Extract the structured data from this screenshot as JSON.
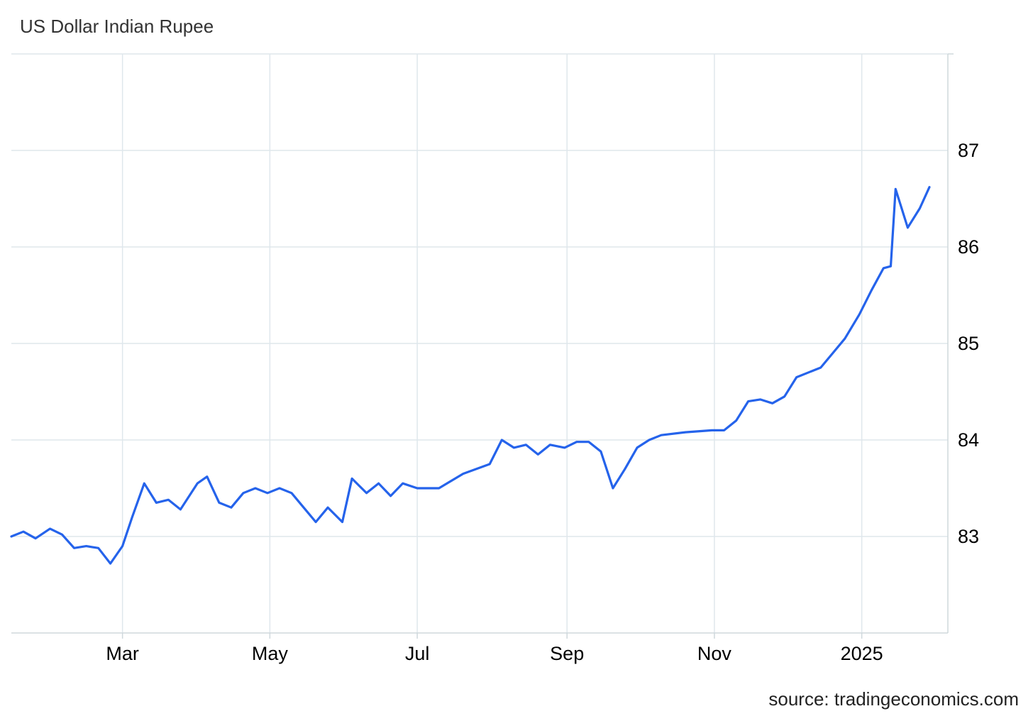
{
  "title": "US Dollar Indian Rupee",
  "source": "source: tradingeconomics.com",
  "colors": {
    "line": "#2563eb",
    "grid": "#dfe7ec",
    "axis": "#cfd8dc"
  },
  "chart_data": {
    "type": "line",
    "title": "US Dollar Indian Rupee",
    "x_tick_labels": [
      "Mar",
      "May",
      "Jul",
      "Sep",
      "Nov",
      "2025"
    ],
    "y_tick_labels": [
      "83",
      "84",
      "85",
      "86",
      "87"
    ],
    "ylim": [
      82,
      88
    ],
    "grid": true,
    "x_range": [
      "2024-01-15",
      "2025-01-29"
    ],
    "series": [
      {
        "x": [
          "2024-01-15",
          "2024-01-20",
          "2024-01-25",
          "2024-01-31",
          "2024-02-05",
          "2024-02-10",
          "2024-02-15",
          "2024-02-20",
          "2024-02-25",
          "2024-03-01",
          "2024-03-05",
          "2024-03-10",
          "2024-03-15",
          "2024-03-20",
          "2024-03-25",
          "2024-04-01",
          "2024-04-05",
          "2024-04-10",
          "2024-04-15",
          "2024-04-20",
          "2024-04-25",
          "2024-04-30",
          "2024-05-05",
          "2024-05-10",
          "2024-05-15",
          "2024-05-20",
          "2024-05-25",
          "2024-05-31",
          "2024-06-04",
          "2024-06-10",
          "2024-06-15",
          "2024-06-20",
          "2024-06-25",
          "2024-07-01",
          "2024-07-10",
          "2024-07-20",
          "2024-07-31",
          "2024-08-05",
          "2024-08-10",
          "2024-08-15",
          "2024-08-20",
          "2024-08-25",
          "2024-08-31",
          "2024-09-05",
          "2024-09-10",
          "2024-09-15",
          "2024-09-20",
          "2024-09-25",
          "2024-09-30",
          "2024-10-05",
          "2024-10-10",
          "2024-10-20",
          "2024-10-31",
          "2024-11-05",
          "2024-11-10",
          "2024-11-15",
          "2024-11-20",
          "2024-11-25",
          "2024-11-30",
          "2024-12-05",
          "2024-12-10",
          "2024-12-15",
          "2024-12-20",
          "2024-12-25",
          "2024-12-31",
          "2025-01-05",
          "2025-01-10",
          "2025-01-13",
          "2025-01-15",
          "2025-01-20",
          "2025-01-25",
          "2025-01-29"
        ],
        "values": [
          83.0,
          83.05,
          82.98,
          83.08,
          83.02,
          82.88,
          82.9,
          82.88,
          82.72,
          82.9,
          83.2,
          83.55,
          83.35,
          83.38,
          83.28,
          83.55,
          83.62,
          83.35,
          83.3,
          83.45,
          83.5,
          83.45,
          83.5,
          83.45,
          83.3,
          83.15,
          83.3,
          83.15,
          83.6,
          83.45,
          83.55,
          83.42,
          83.55,
          83.5,
          83.5,
          83.65,
          83.75,
          84.0,
          83.92,
          83.95,
          83.85,
          83.95,
          83.92,
          83.98,
          83.98,
          83.88,
          83.5,
          83.7,
          83.92,
          84.0,
          84.05,
          84.08,
          84.1,
          84.1,
          84.2,
          84.4,
          84.42,
          84.38,
          84.45,
          84.65,
          84.7,
          84.75,
          84.9,
          85.05,
          85.3,
          85.55,
          85.78,
          85.8,
          86.6,
          86.2,
          86.4,
          86.62
        ]
      }
    ]
  }
}
